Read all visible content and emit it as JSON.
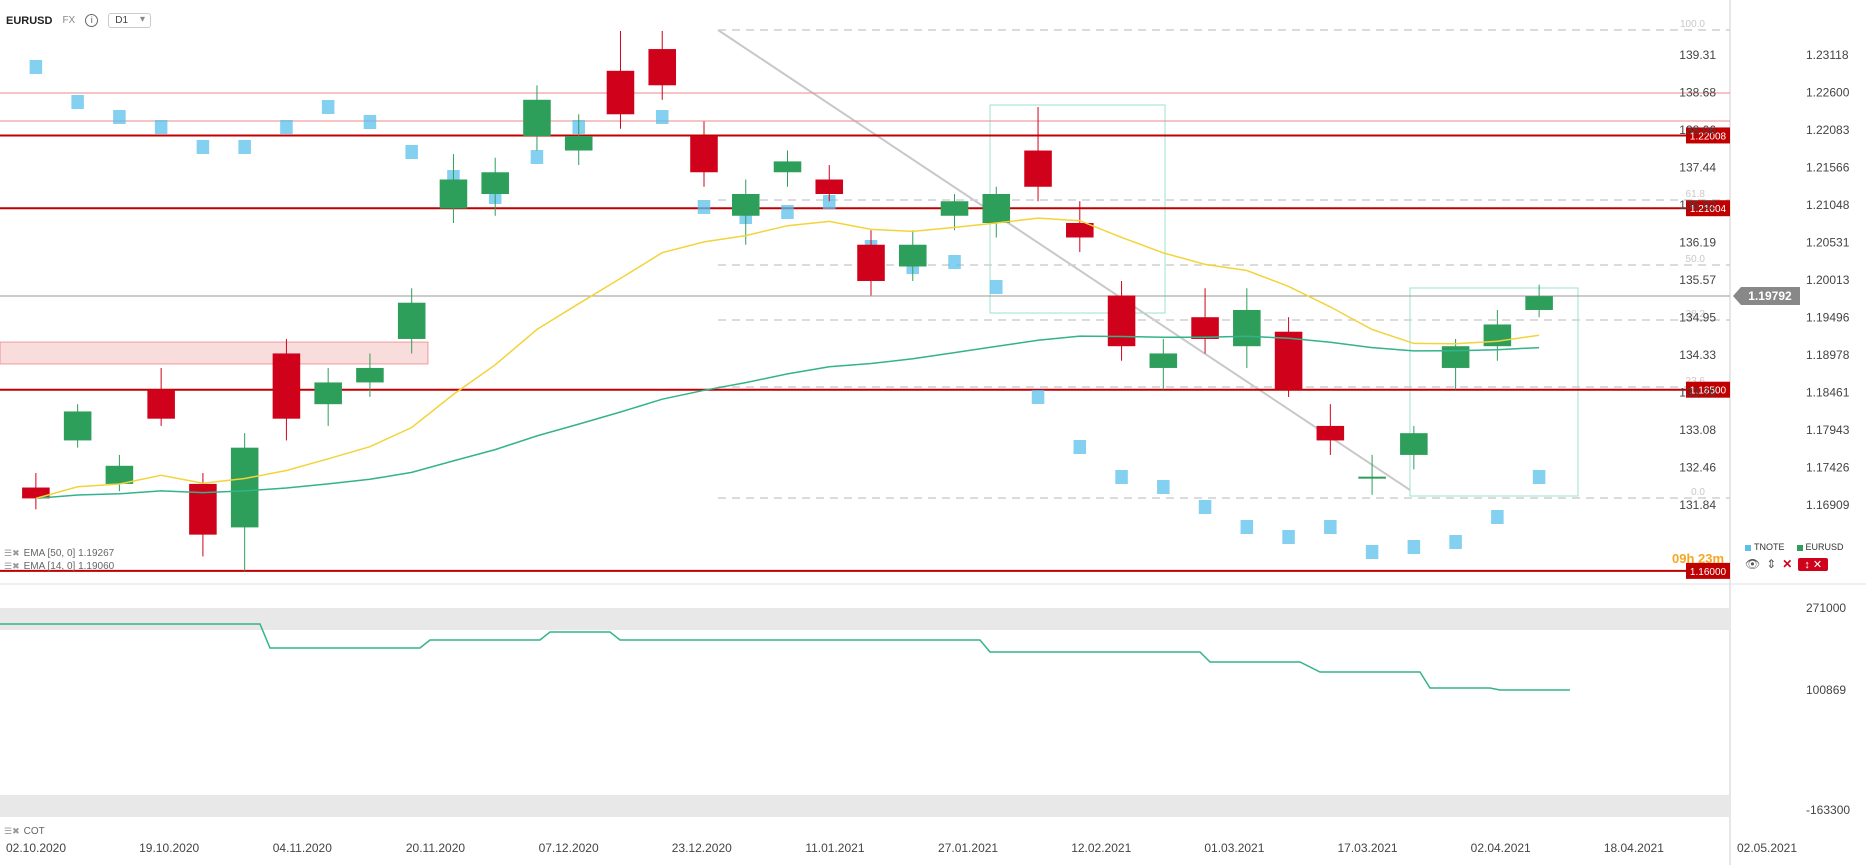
{
  "header": {
    "symbol": "EURUSD",
    "exchange": "FX",
    "timeframe": "D1"
  },
  "indicators": {
    "ema50_label": "EMA [50, 0] 1.19267",
    "ema14_label": "EMA [14, 0] 1.19060",
    "cot_label": "COT"
  },
  "countdown": "09h 23m",
  "legend": {
    "tnote": "TNOTE",
    "eurusd": "EURUSD"
  },
  "colors": {
    "bull": "#2e9e5b",
    "bear": "#d0021b",
    "tnote": "#5bc0eb",
    "ema50": "#33b38a",
    "ema14": "#f2d43a",
    "level": "#c00000"
  },
  "chart_data": {
    "type": "candlestick",
    "x_ticks": [
      "02.10.2020",
      "19.10.2020",
      "04.11.2020",
      "20.11.2020",
      "07.12.2020",
      "23.12.2020",
      "11.01.2021",
      "27.01.2021",
      "12.02.2021",
      "01.03.2021",
      "17.03.2021",
      "02.04.2021",
      "18.04.2021",
      "02.05.2021"
    ],
    "left_axis_ticks": [
      "139.31",
      "138.68",
      "138.06",
      "137.44",
      "136.82",
      "136.19",
      "135.57",
      "134.95",
      "134.33",
      "133.70",
      "133.08",
      "132.46",
      "131.84"
    ],
    "right_axis_ticks": [
      "1.23118",
      "1.22600",
      "1.22083",
      "1.21566",
      "1.21048",
      "1.20531",
      "1.20013",
      "1.19496",
      "1.18978",
      "1.18461",
      "1.17943",
      "1.17426",
      "1.16909"
    ],
    "current_price": "1.19792",
    "levels": [
      "1.22008",
      "1.21004",
      "1.18500",
      "1.16000"
    ],
    "fibonacci": [
      "100.0",
      "61.8",
      "50.0",
      "38.2",
      "23.6",
      "0.0"
    ],
    "cot_axis": [
      "271000",
      "100869",
      "-163300"
    ],
    "eurusd": [
      {
        "d": "02.10.2020",
        "o": 1.1715,
        "h": 1.1735,
        "l": 1.1685,
        "c": 1.17
      },
      {
        "d": "09.10.2020",
        "o": 1.178,
        "h": 1.183,
        "l": 1.177,
        "c": 1.182
      },
      {
        "d": "16.10.2020",
        "o": 1.172,
        "h": 1.176,
        "l": 1.171,
        "c": 1.1745
      },
      {
        "d": "23.10.2020",
        "o": 1.185,
        "h": 1.188,
        "l": 1.18,
        "c": 1.181
      },
      {
        "d": "30.10.2020",
        "o": 1.172,
        "h": 1.1735,
        "l": 1.162,
        "c": 1.165
      },
      {
        "d": "04.11.2020",
        "o": 1.166,
        "h": 1.179,
        "l": 1.16,
        "c": 1.177
      },
      {
        "d": "10.11.2020",
        "o": 1.19,
        "h": 1.192,
        "l": 1.178,
        "c": 1.181
      },
      {
        "d": "16.11.2020",
        "o": 1.183,
        "h": 1.188,
        "l": 1.18,
        "c": 1.186
      },
      {
        "d": "20.11.2020",
        "o": 1.186,
        "h": 1.19,
        "l": 1.184,
        "c": 1.188
      },
      {
        "d": "27.11.2020",
        "o": 1.192,
        "h": 1.199,
        "l": 1.19,
        "c": 1.197
      },
      {
        "d": "03.12.2020",
        "o": 1.21,
        "h": 1.2175,
        "l": 1.208,
        "c": 1.214
      },
      {
        "d": "10.12.2020",
        "o": 1.212,
        "h": 1.217,
        "l": 1.209,
        "c": 1.215
      },
      {
        "d": "16.12.2020",
        "o": 1.22,
        "h": 1.227,
        "l": 1.218,
        "c": 1.225
      },
      {
        "d": "23.12.2020",
        "o": 1.218,
        "h": 1.223,
        "l": 1.216,
        "c": 1.22
      },
      {
        "d": "31.12.2020",
        "o": 1.229,
        "h": 1.2345,
        "l": 1.221,
        "c": 1.223
      },
      {
        "d": "06.01.2021",
        "o": 1.232,
        "h": 1.2345,
        "l": 1.225,
        "c": 1.227
      },
      {
        "d": "11.01.2021",
        "o": 1.22,
        "h": 1.222,
        "l": 1.213,
        "c": 1.215
      },
      {
        "d": "18.01.2021",
        "o": 1.209,
        "h": 1.214,
        "l": 1.205,
        "c": 1.212
      },
      {
        "d": "22.01.2021",
        "o": 1.215,
        "h": 1.218,
        "l": 1.213,
        "c": 1.2165
      },
      {
        "d": "27.01.2021",
        "o": 1.214,
        "h": 1.216,
        "l": 1.211,
        "c": 1.212
      },
      {
        "d": "03.02.2021",
        "o": 1.205,
        "h": 1.207,
        "l": 1.198,
        "c": 1.2
      },
      {
        "d": "08.02.2021",
        "o": 1.202,
        "h": 1.207,
        "l": 1.2,
        "c": 1.205
      },
      {
        "d": "12.02.2021",
        "o": 1.209,
        "h": 1.212,
        "l": 1.207,
        "c": 1.211
      },
      {
        "d": "19.02.2021",
        "o": 1.208,
        "h": 1.213,
        "l": 1.206,
        "c": 1.212
      },
      {
        "d": "25.02.2021",
        "o": 1.218,
        "h": 1.224,
        "l": 1.211,
        "c": 1.213
      },
      {
        "d": "01.03.2021",
        "o": 1.208,
        "h": 1.211,
        "l": 1.204,
        "c": 1.206
      },
      {
        "d": "05.03.2021",
        "o": 1.198,
        "h": 1.2,
        "l": 1.189,
        "c": 1.191
      },
      {
        "d": "10.03.2021",
        "o": 1.188,
        "h": 1.192,
        "l": 1.185,
        "c": 1.19
      },
      {
        "d": "12.03.2021",
        "o": 1.195,
        "h": 1.199,
        "l": 1.19,
        "c": 1.192
      },
      {
        "d": "17.03.2021",
        "o": 1.191,
        "h": 1.199,
        "l": 1.188,
        "c": 1.196
      },
      {
        "d": "22.03.2021",
        "o": 1.193,
        "h": 1.195,
        "l": 1.184,
        "c": 1.185
      },
      {
        "d": "26.03.2021",
        "o": 1.18,
        "h": 1.183,
        "l": 1.176,
        "c": 1.178
      },
      {
        "d": "31.03.2021",
        "o": 1.173,
        "h": 1.176,
        "l": 1.1705,
        "c": 1.173
      },
      {
        "d": "02.04.2021",
        "o": 1.176,
        "h": 1.18,
        "l": 1.174,
        "c": 1.179
      },
      {
        "d": "07.04.2021",
        "o": 1.188,
        "h": 1.192,
        "l": 1.185,
        "c": 1.191
      },
      {
        "d": "12.04.2021",
        "o": 1.191,
        "h": 1.196,
        "l": 1.189,
        "c": 1.194
      },
      {
        "d": "15.04.2021",
        "o": 1.196,
        "h": 1.1995,
        "l": 1.195,
        "c": 1.1979
      }
    ]
  }
}
